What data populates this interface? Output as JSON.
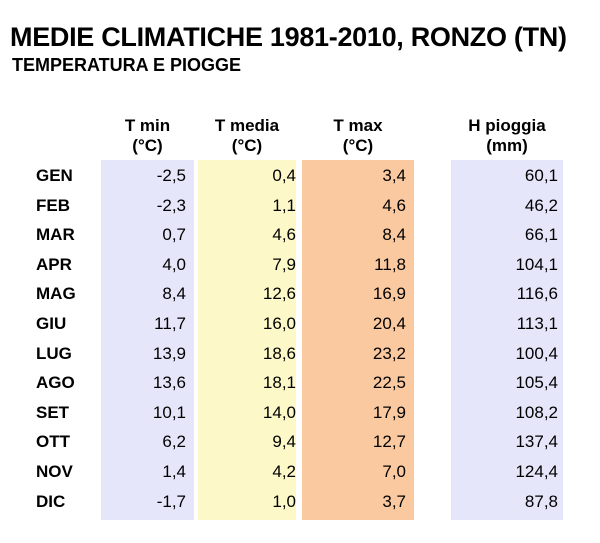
{
  "title": "MEDIE CLIMATICHE 1981-2010, RONZO (TN)",
  "subtitle": "TEMPERATURA E PIOGGE",
  "headers": {
    "tmin": [
      "T min",
      "(°C)"
    ],
    "tmed": [
      "T media",
      "(°C)"
    ],
    "tmax": [
      "T max",
      "(°C)"
    ],
    "rain": [
      "H pioggia",
      "(mm)"
    ]
  },
  "colors": {
    "tmin_bg": "#e6e6fa",
    "tmed_bg": "#fcf8c8",
    "tmax_bg": "#fbc9a0",
    "rain_bg": "#e6e6fa"
  },
  "chart_data": {
    "type": "table",
    "title": "MEDIE CLIMATICHE 1981-2010, RONZO (TN)",
    "subtitle": "TEMPERATURA E PIOGGE",
    "columns": [
      "T min (°C)",
      "T media (°C)",
      "T max (°C)",
      "H pioggia (mm)"
    ],
    "rows": [
      {
        "month": "GEN",
        "tmin": "-2,5",
        "tmed": "0,4",
        "tmax": "3,4",
        "rain": "60,1"
      },
      {
        "month": "FEB",
        "tmin": "-2,3",
        "tmed": "1,1",
        "tmax": "4,6",
        "rain": "46,2"
      },
      {
        "month": "MAR",
        "tmin": "0,7",
        "tmed": "4,6",
        "tmax": "8,4",
        "rain": "66,1"
      },
      {
        "month": "APR",
        "tmin": "4,0",
        "tmed": "7,9",
        "tmax": "11,8",
        "rain": "104,1"
      },
      {
        "month": "MAG",
        "tmin": "8,4",
        "tmed": "12,6",
        "tmax": "16,9",
        "rain": "116,6"
      },
      {
        "month": "GIU",
        "tmin": "11,7",
        "tmed": "16,0",
        "tmax": "20,4",
        "rain": "113,1"
      },
      {
        "month": "LUG",
        "tmin": "13,9",
        "tmed": "18,6",
        "tmax": "23,2",
        "rain": "100,4"
      },
      {
        "month": "AGO",
        "tmin": "13,6",
        "tmed": "18,1",
        "tmax": "22,5",
        "rain": "105,4"
      },
      {
        "month": "SET",
        "tmin": "10,1",
        "tmed": "14,0",
        "tmax": "17,9",
        "rain": "108,2"
      },
      {
        "month": "OTT",
        "tmin": "6,2",
        "tmed": "9,4",
        "tmax": "12,7",
        "rain": "137,4"
      },
      {
        "month": "NOV",
        "tmin": "1,4",
        "tmed": "4,2",
        "tmax": "7,0",
        "rain": "124,4"
      },
      {
        "month": "DIC",
        "tmin": "-1,7",
        "tmed": "1,0",
        "tmax": "3,7",
        "rain": "87,8"
      }
    ]
  }
}
